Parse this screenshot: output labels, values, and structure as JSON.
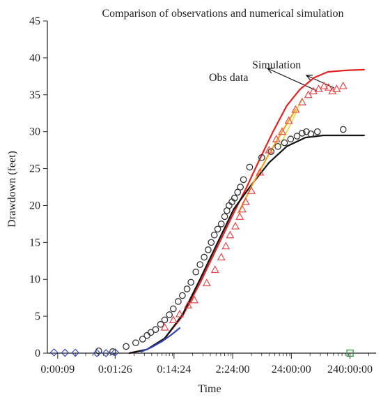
{
  "chart_data": {
    "type": "scatter",
    "title": "Comparison of observations and numerical simulation",
    "xlabel": "Time",
    "ylabel": "Drawdown (feet)",
    "x_scale": "log",
    "xlim_minutes": [
      0.1,
      40000
    ],
    "ylim": [
      0,
      45
    ],
    "y_ticks": [
      0,
      5,
      10,
      15,
      20,
      25,
      30,
      35,
      40,
      45
    ],
    "x_ticks": [
      {
        "label": "0:00:09",
        "minutes": 0.15
      },
      {
        "label": "0:01:26",
        "minutes": 1.43
      },
      {
        "label": "0:14:24",
        "minutes": 14.4
      },
      {
        "label": "2:24:00",
        "minutes": 144
      },
      {
        "label": "24:00:00",
        "minutes": 1440
      },
      {
        "label": "240:00:00",
        "minutes": 14400
      }
    ],
    "annotations": [
      {
        "text": "Simulation"
      },
      {
        "text": "Obs data"
      }
    ],
    "series": [
      {
        "marker": "circle",
        "color": "#333333",
        "points": [
          [
            0.75,
            0.3
          ],
          [
            1.3,
            0.2
          ],
          [
            2.2,
            0.9
          ],
          [
            3.2,
            1.4
          ],
          [
            4.2,
            1.9
          ],
          [
            5.0,
            2.4
          ],
          [
            5.8,
            2.8
          ],
          [
            7.0,
            3.2
          ],
          [
            8.5,
            3.9
          ],
          [
            10,
            4.5
          ],
          [
            12,
            5.2
          ],
          [
            14,
            6.0
          ],
          [
            17,
            7.0
          ],
          [
            20,
            7.8
          ],
          [
            24,
            8.7
          ],
          [
            28,
            9.6
          ],
          [
            34,
            11.0
          ],
          [
            40,
            12.0
          ],
          [
            47,
            13.0
          ],
          [
            55,
            14.0
          ],
          [
            62,
            15.0
          ],
          [
            70,
            16.0
          ],
          [
            80,
            16.8
          ],
          [
            92,
            17.5
          ],
          [
            105,
            18.5
          ],
          [
            115,
            19.3
          ],
          [
            125,
            20.0
          ],
          [
            140,
            20.5
          ],
          [
            155,
            21.0
          ],
          [
            175,
            21.8
          ],
          [
            195,
            22.5
          ],
          [
            220,
            23.5
          ],
          [
            280,
            25.2
          ],
          [
            450,
            26.5
          ],
          [
            650,
            27.3
          ],
          [
            850,
            28.0
          ],
          [
            1100,
            28.5
          ],
          [
            1400,
            29.0
          ],
          [
            1800,
            29.4
          ],
          [
            2200,
            29.8
          ],
          [
            2600,
            30.0
          ],
          [
            3100,
            29.7
          ],
          [
            4000,
            30.0
          ],
          [
            11000,
            30.3
          ]
        ]
      },
      {
        "marker": "triangle",
        "color": "#e8474a",
        "points": [
          [
            10,
            3.5
          ],
          [
            14,
            4.5
          ],
          [
            18,
            5.3
          ],
          [
            25,
            6.5
          ],
          [
            32,
            7.2
          ],
          [
            52,
            9.5
          ],
          [
            72,
            11.3
          ],
          [
            92,
            13.0
          ],
          [
            110,
            14.5
          ],
          [
            130,
            16.0
          ],
          [
            160,
            17.2
          ],
          [
            190,
            18.5
          ],
          [
            210,
            19.5
          ],
          [
            240,
            20.5
          ],
          [
            300,
            22.0
          ],
          [
            420,
            24.5
          ],
          [
            600,
            27.5
          ],
          [
            800,
            29.0
          ],
          [
            1000,
            30.0
          ],
          [
            1300,
            31.5
          ],
          [
            1700,
            33.0
          ],
          [
            2200,
            34.0
          ],
          [
            2800,
            35.0
          ],
          [
            3400,
            35.5
          ],
          [
            4200,
            35.8
          ],
          [
            5200,
            36.2
          ],
          [
            6200,
            36.0
          ],
          [
            7200,
            35.5
          ],
          [
            8500,
            35.8
          ],
          [
            11000,
            36.2
          ]
        ]
      },
      {
        "marker": "diamond",
        "color": "#3a4db8",
        "points": [
          [
            0.13,
            0.1
          ],
          [
            0.2,
            0.05
          ],
          [
            0.3,
            0.05
          ],
          [
            0.7,
            0.0
          ],
          [
            1.0,
            0.0
          ],
          [
            1.43,
            0.1
          ]
        ]
      }
    ],
    "lines": [
      {
        "name": "Simulation (red)",
        "color": "#e52222",
        "points": [
          [
            2.5,
            0
          ],
          [
            5,
            0.5
          ],
          [
            10,
            2
          ],
          [
            20,
            5
          ],
          [
            40,
            9.5
          ],
          [
            80,
            14.5
          ],
          [
            150,
            19
          ],
          [
            250,
            22.5
          ],
          [
            400,
            26
          ],
          [
            700,
            30
          ],
          [
            1200,
            33.5
          ],
          [
            2000,
            35.7
          ],
          [
            3500,
            37.3
          ],
          [
            6000,
            38.1
          ],
          [
            12000,
            38.3
          ],
          [
            25000,
            38.4
          ]
        ]
      },
      {
        "name": "Simulation (black)",
        "color": "#111111",
        "points": [
          [
            2.5,
            0
          ],
          [
            5,
            0.5
          ],
          [
            10,
            2
          ],
          [
            20,
            5.2
          ],
          [
            40,
            10
          ],
          [
            80,
            15
          ],
          [
            150,
            19.5
          ],
          [
            300,
            22.8
          ],
          [
            600,
            25.8
          ],
          [
            1200,
            28
          ],
          [
            2500,
            29.2
          ],
          [
            5000,
            29.5
          ],
          [
            10000,
            29.5
          ],
          [
            25000,
            29.5
          ]
        ]
      },
      {
        "name": "Early fit (blue)",
        "color": "#3344bb",
        "points": [
          [
            4,
            0.2
          ],
          [
            6,
            0.8
          ],
          [
            9,
            1.6
          ],
          [
            13,
            2.5
          ],
          [
            18,
            3.4
          ]
        ]
      },
      {
        "name": "Trend (orange)",
        "color": "#f7a21a",
        "points": [
          [
            180,
            19
          ],
          [
            320,
            23
          ],
          [
            600,
            27
          ],
          [
            1000,
            30
          ],
          [
            1700,
            33
          ]
        ]
      },
      {
        "name": "Trend (yellow)",
        "color": "#e8e060",
        "points": [
          [
            900,
            28
          ],
          [
            1500,
            31.5
          ],
          [
            2200,
            34.5
          ]
        ]
      }
    ],
    "extra_marker": {
      "shape": "square",
      "color": "#2a9d3a",
      "x": 14400,
      "y": 0
    },
    "grid": false
  }
}
